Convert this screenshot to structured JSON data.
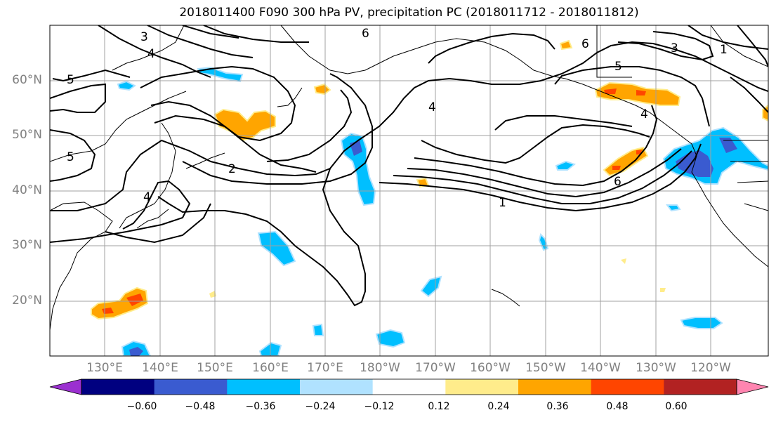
{
  "title": "2018011400 F090 300 hPa PV, precipitation PC (2018011712 - 2018011812)",
  "map": {
    "latitude_labels": [
      "60°N",
      "50°N",
      "40°N",
      "30°N",
      "20°N"
    ],
    "longitude_labels": [
      "130°E",
      "140°E",
      "150°E",
      "160°E",
      "170°E",
      "180°W",
      "170°W",
      "160°W",
      "150°W",
      "140°W",
      "130°W",
      "120°W"
    ],
    "contour_labels": [
      "3",
      "4",
      "6",
      "5",
      "5",
      "2",
      "4",
      "1",
      "6",
      "6",
      "5",
      "3",
      "1",
      "4",
      "4"
    ]
  },
  "colorbar": {
    "ticks": [
      "−0.60",
      "−0.48",
      "−0.36",
      "−0.24",
      "−0.12",
      "0.12",
      "0.24",
      "0.36",
      "0.48",
      "0.60"
    ],
    "colors": [
      "#9b30d0",
      "#000080",
      "#3a5bd0",
      "#00bfff",
      "#b0e2ff",
      "#ffffff",
      "#ffec8b",
      "#ffa500",
      "#ff4500",
      "#b22222",
      "#ff85b0"
    ]
  }
}
